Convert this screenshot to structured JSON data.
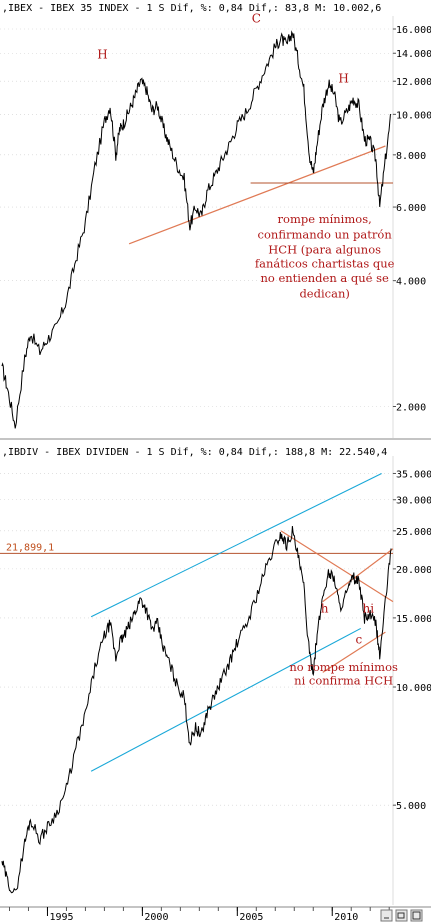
{
  "chart_data": [
    {
      "type": "line",
      "header": ",IBEX - IBEX 35 INDEX - 1 S Dif, %: 0,84 Dif,: 83,8 M: 10.002,6",
      "scale": "log",
      "ylim": [
        1700,
        17000
      ],
      "yticks": [
        {
          "value": 16000,
          "label": "16.000"
        },
        {
          "value": 14000,
          "label": "14.000"
        },
        {
          "value": 12000,
          "label": "12.000"
        },
        {
          "value": 10000,
          "label": "10.000"
        },
        {
          "value": 8000,
          "label": "8.000"
        },
        {
          "value": 6000,
          "label": "6.000"
        },
        {
          "value": 4000,
          "label": "4.000"
        },
        {
          "value": 2000,
          "label": "2.000"
        }
      ],
      "xlim": [
        1992.5,
        2013.2
      ],
      "x": [
        1992.6,
        1992.9,
        1993.3,
        1993.8,
        1994.1,
        1994.6,
        1995.0,
        1995.5,
        1996.0,
        1996.5,
        1997.0,
        1997.5,
        1998.0,
        1998.3,
        1998.6,
        1998.8,
        1999.0,
        1999.3,
        1999.6,
        1999.9,
        2000.2,
        2000.5,
        2000.8,
        2001.1,
        2001.4,
        2001.8,
        2002.2,
        2002.5,
        2002.8,
        2003.1,
        2003.4,
        2003.8,
        2004.2,
        2004.6,
        2005.0,
        2005.5,
        2006.0,
        2006.5,
        2007.0,
        2007.3,
        2007.6,
        2007.9,
        2008.2,
        2008.5,
        2008.8,
        2009.0,
        2009.2,
        2009.5,
        2009.8,
        2010.1,
        2010.4,
        2010.8,
        2011.1,
        2011.4,
        2011.7,
        2012.0,
        2012.3,
        2012.5,
        2012.8,
        2013.1
      ],
      "values": [
        2500,
        2200,
        1800,
        2600,
        3000,
        2700,
        2900,
        3100,
        3600,
        4500,
        5500,
        7500,
        9600,
        10500,
        8000,
        9200,
        9500,
        10200,
        11000,
        12000,
        11500,
        10200,
        10500,
        9300,
        8500,
        7600,
        7000,
        5400,
        6000,
        5700,
        6500,
        7100,
        7800,
        8500,
        9400,
        10200,
        11500,
        13000,
        14500,
        15200,
        14600,
        15800,
        13500,
        11500,
        8000,
        7200,
        8500,
        10500,
        11800,
        11200,
        9500,
        10200,
        10900,
        10500,
        8700,
        8600,
        7800,
        6000,
        7800,
        10000
      ],
      "annotations": [
        {
          "text": "H",
          "x": 1997.9,
          "y": 13600
        },
        {
          "text": "C",
          "x": 2006.0,
          "y": 16600
        },
        {
          "text": "H",
          "x": 2010.6,
          "y": 11900
        },
        {
          "text": "rompe mínimos,",
          "x": 2009.6,
          "y": 5500
        },
        {
          "text": "confirmando un patrón",
          "x": 2009.6,
          "y": 5050
        },
        {
          "text": "HCH (para algunos",
          "x": 2009.6,
          "y": 4650
        },
        {
          "text": "fanáticos chartistas que",
          "x": 2009.6,
          "y": 4300
        },
        {
          "text": "no entienden a qué se",
          "x": 2009.6,
          "y": 3970
        },
        {
          "text": "dedican)",
          "x": 2009.6,
          "y": 3650
        }
      ]
    },
    {
      "type": "line",
      "header": ",IBDIV - IBEX DIVIDEN - 1 S Dif, %: 0,84 Dif,: 188,8 M: 22.540,4",
      "scale": "log",
      "ylim": [
        2800,
        37000
      ],
      "yticks": [
        {
          "value": 35000,
          "label": "35.000"
        },
        {
          "value": 30000,
          "label": "30.000"
        },
        {
          "value": 25000,
          "label": "25.000"
        },
        {
          "value": 20000,
          "label": "20.000"
        },
        {
          "value": 15000,
          "label": "15.000"
        },
        {
          "value": 10000,
          "label": "10.000"
        },
        {
          "value": 5000,
          "label": "5.000"
        }
      ],
      "price_label": "21,899,1",
      "price_level": 21899.1,
      "xlim": [
        1992.5,
        2013.2
      ],
      "x": [
        1992.6,
        1992.9,
        1993.3,
        1993.8,
        1994.1,
        1994.6,
        1995.0,
        1995.5,
        1996.0,
        1996.5,
        1997.0,
        1997.5,
        1998.0,
        1998.3,
        1998.6,
        1998.8,
        1999.0,
        1999.3,
        1999.6,
        1999.9,
        2000.2,
        2000.5,
        2000.8,
        2001.1,
        2001.4,
        2001.8,
        2002.2,
        2002.5,
        2002.8,
        2003.1,
        2003.4,
        2003.8,
        2004.2,
        2004.6,
        2005.0,
        2005.5,
        2006.0,
        2006.5,
        2007.0,
        2007.3,
        2007.6,
        2007.9,
        2008.2,
        2008.5,
        2008.8,
        2009.0,
        2009.2,
        2009.5,
        2009.8,
        2010.1,
        2010.4,
        2010.8,
        2011.1,
        2011.4,
        2011.7,
        2012.0,
        2012.3,
        2012.5,
        2012.8,
        2013.1
      ],
      "values": [
        3600,
        3200,
        2950,
        4000,
        4600,
        4100,
        4400,
        4800,
        5500,
        7000,
        8500,
        11200,
        13500,
        14500,
        11800,
        13000,
        13400,
        14300,
        15500,
        16800,
        15800,
        14000,
        14500,
        12600,
        11600,
        10200,
        9400,
        7200,
        7900,
        7500,
        8600,
        9500,
        10500,
        11600,
        13000,
        14500,
        17000,
        20000,
        23000,
        24500,
        23000,
        25000,
        21500,
        18000,
        12000,
        11000,
        13500,
        17000,
        19500,
        19000,
        16000,
        17500,
        19000,
        18500,
        15000,
        15200,
        14500,
        12000,
        16500,
        22540
      ],
      "xticks": [
        {
          "value": 1995,
          "label": "1995"
        },
        {
          "value": 2000,
          "label": "2000"
        },
        {
          "value": 2005,
          "label": "2005"
        },
        {
          "value": 2010,
          "label": "2010"
        }
      ],
      "annotations": [
        {
          "text": "h",
          "x": 2009.6,
          "y": 15500
        },
        {
          "text": "hi",
          "x": 2011.9,
          "y": 15500
        },
        {
          "text": "c",
          "x": 2011.4,
          "y": 12900
        },
        {
          "text": "no rompe mínimos",
          "x": 2010.6,
          "y": 11000
        },
        {
          "text": "ni confirma HCH",
          "x": 2010.6,
          "y": 10150
        }
      ]
    }
  ],
  "colors": {
    "price": "#000000",
    "annotation": "#b01818",
    "trendline": "#e07a55",
    "support": "#b5532e",
    "channel": "#1aa8d8",
    "grid": "#cfcfcf",
    "price_label": "#c0501e"
  }
}
